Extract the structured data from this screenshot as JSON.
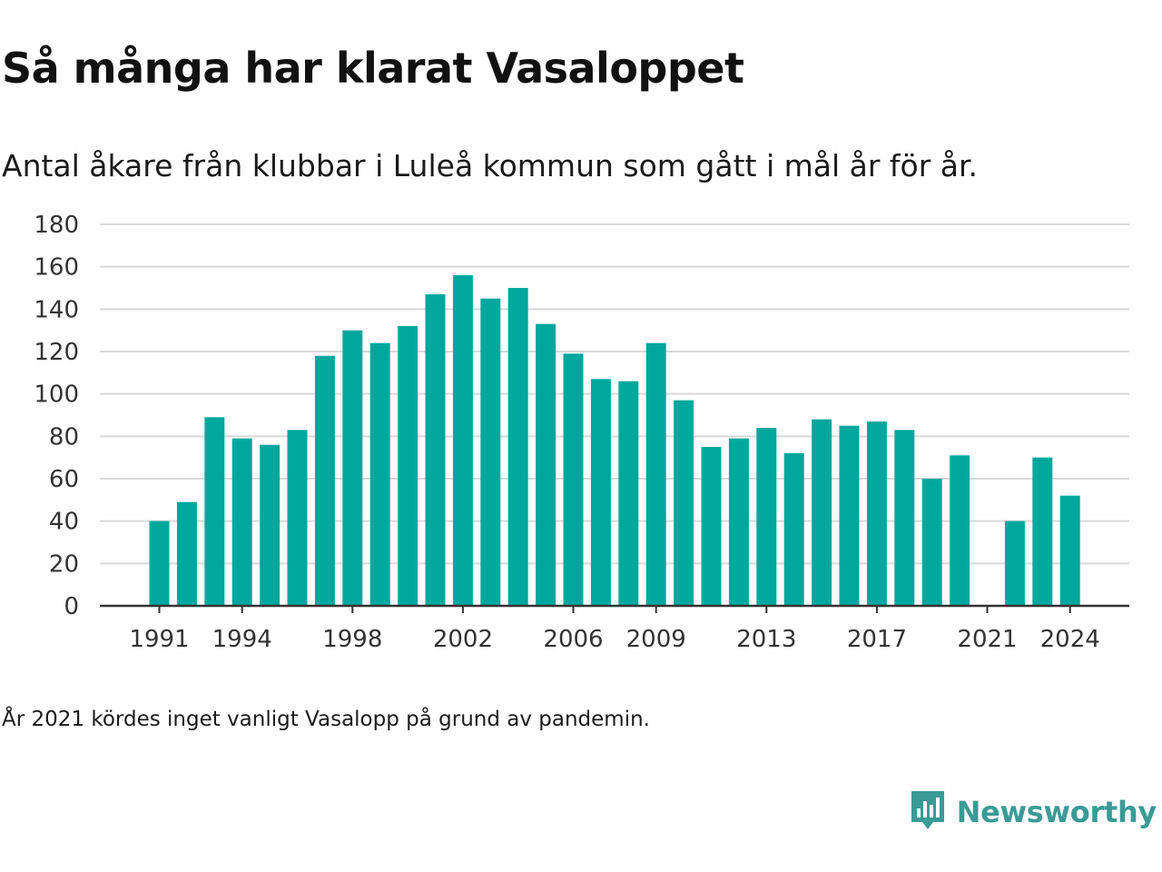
{
  "header": {
    "title": "Så många har klarat Vasaloppet",
    "subtitle": "Antal åkare från klubbar i Luleå kommun som gått i mål år för år."
  },
  "footer": {
    "note": "År 2021 kördes inget vanligt Vasalopp på grund av pandemin.",
    "brand_name": "Newsworthy",
    "brand_icon": "newsworthy-logo-icon"
  },
  "colors": {
    "bar": "#00a79d",
    "grid": "#d9d9d9",
    "axis": "#333333",
    "brand": "#3a9a96"
  },
  "chart_data": {
    "type": "bar",
    "title": "Så många har klarat Vasaloppet",
    "subtitle": "Antal åkare från klubbar i Luleå kommun som gått i mål år för år.",
    "xlabel": "",
    "ylabel": "",
    "ylim": [
      0,
      180
    ],
    "yticks": [
      0,
      20,
      40,
      60,
      80,
      100,
      120,
      140,
      160,
      180
    ],
    "xticks": [
      1991,
      1994,
      1998,
      2002,
      2006,
      2009,
      2013,
      2017,
      2021,
      2024
    ],
    "grid": true,
    "legend": "none",
    "categories": [
      1991,
      1992,
      1993,
      1994,
      1995,
      1996,
      1997,
      1998,
      1999,
      2000,
      2001,
      2002,
      2003,
      2004,
      2005,
      2006,
      2007,
      2008,
      2009,
      2010,
      2011,
      2012,
      2013,
      2014,
      2015,
      2016,
      2017,
      2018,
      2019,
      2020,
      2021,
      2022,
      2023,
      2024
    ],
    "values": [
      40,
      49,
      89,
      79,
      76,
      83,
      118,
      130,
      124,
      132,
      147,
      156,
      145,
      150,
      133,
      119,
      107,
      106,
      124,
      97,
      75,
      79,
      84,
      72,
      88,
      85,
      87,
      83,
      60,
      71,
      null,
      40,
      70,
      52
    ]
  }
}
